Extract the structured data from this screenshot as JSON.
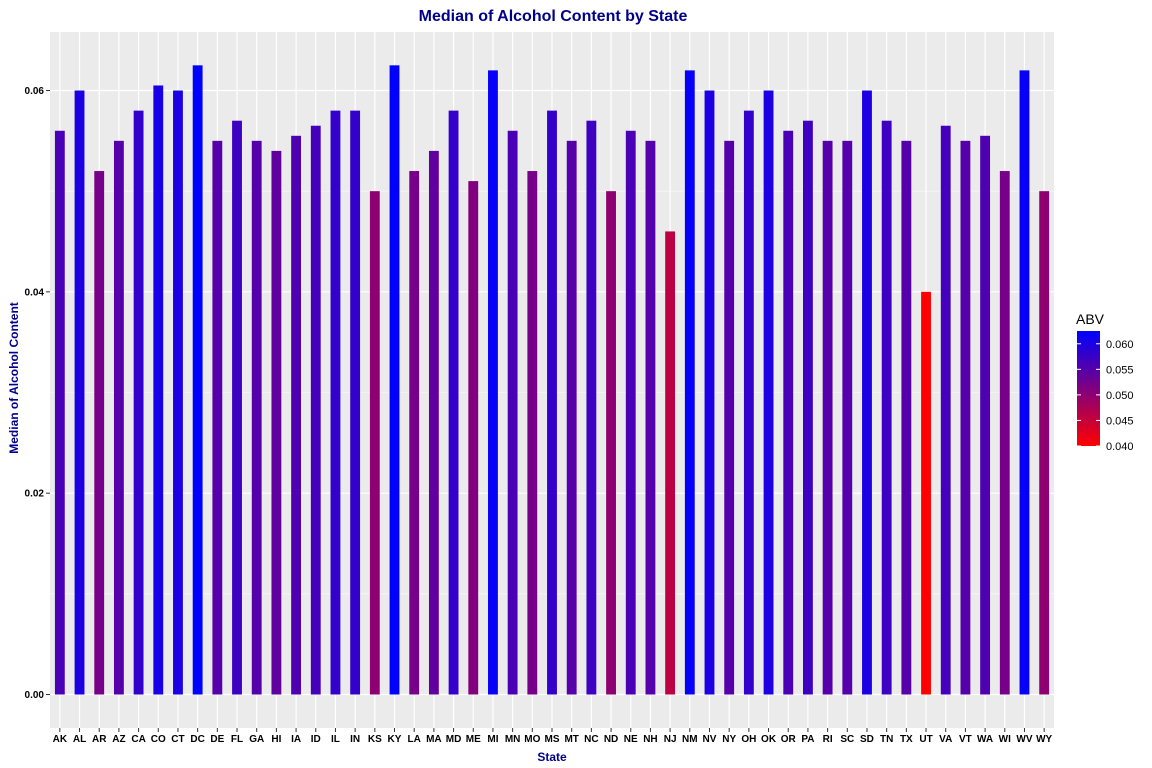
{
  "chart_data": {
    "type": "bar",
    "title": "Median of Alcohol Content by State",
    "xlabel": "State",
    "ylabel": "Median of Alcohol Content",
    "ylim": [
      0,
      0.0638
    ],
    "yticks": [
      0.0,
      0.02,
      0.04,
      0.06
    ],
    "ytick_labels": [
      "0.00",
      "0.02",
      "0.04",
      "0.06"
    ],
    "grid": true,
    "legend": {
      "title": "ABV",
      "placement": "right",
      "min": 0.04,
      "max": 0.0625,
      "ticks": [
        0.04,
        0.045,
        0.05,
        0.055,
        0.06
      ],
      "tick_labels": [
        "0.040",
        "0.045",
        "0.050",
        "0.055",
        "0.060"
      ],
      "color_low": "#FF0000",
      "color_high": "#0000FF"
    },
    "categories": [
      "AK",
      "AL",
      "AR",
      "AZ",
      "CA",
      "CO",
      "CT",
      "DC",
      "DE",
      "FL",
      "GA",
      "HI",
      "IA",
      "ID",
      "IL",
      "IN",
      "KS",
      "KY",
      "LA",
      "MA",
      "MD",
      "ME",
      "MI",
      "MN",
      "MO",
      "MS",
      "MT",
      "NC",
      "ND",
      "NE",
      "NH",
      "NJ",
      "NM",
      "NV",
      "NY",
      "OH",
      "OK",
      "OR",
      "PA",
      "RI",
      "SC",
      "SD",
      "TN",
      "TX",
      "UT",
      "VA",
      "VT",
      "WA",
      "WI",
      "WV",
      "WY"
    ],
    "values": [
      0.056,
      0.06,
      0.052,
      0.055,
      0.058,
      0.0605,
      0.06,
      0.0625,
      0.055,
      0.057,
      0.055,
      0.054,
      0.0555,
      0.0565,
      0.058,
      0.058,
      0.05,
      0.0625,
      0.052,
      0.054,
      0.058,
      0.051,
      0.062,
      0.056,
      0.052,
      0.058,
      0.055,
      0.057,
      0.05,
      0.056,
      0.055,
      0.046,
      0.062,
      0.06,
      0.055,
      0.058,
      0.06,
      0.056,
      0.057,
      0.055,
      0.055,
      0.06,
      0.057,
      0.055,
      0.04,
      0.0565,
      0.055,
      0.0555,
      0.052,
      0.062,
      0.05
    ]
  },
  "colors": {
    "panel_background": "#EBEBEB",
    "grid_major": "#FFFFFF",
    "title_color": "#00008B"
  }
}
